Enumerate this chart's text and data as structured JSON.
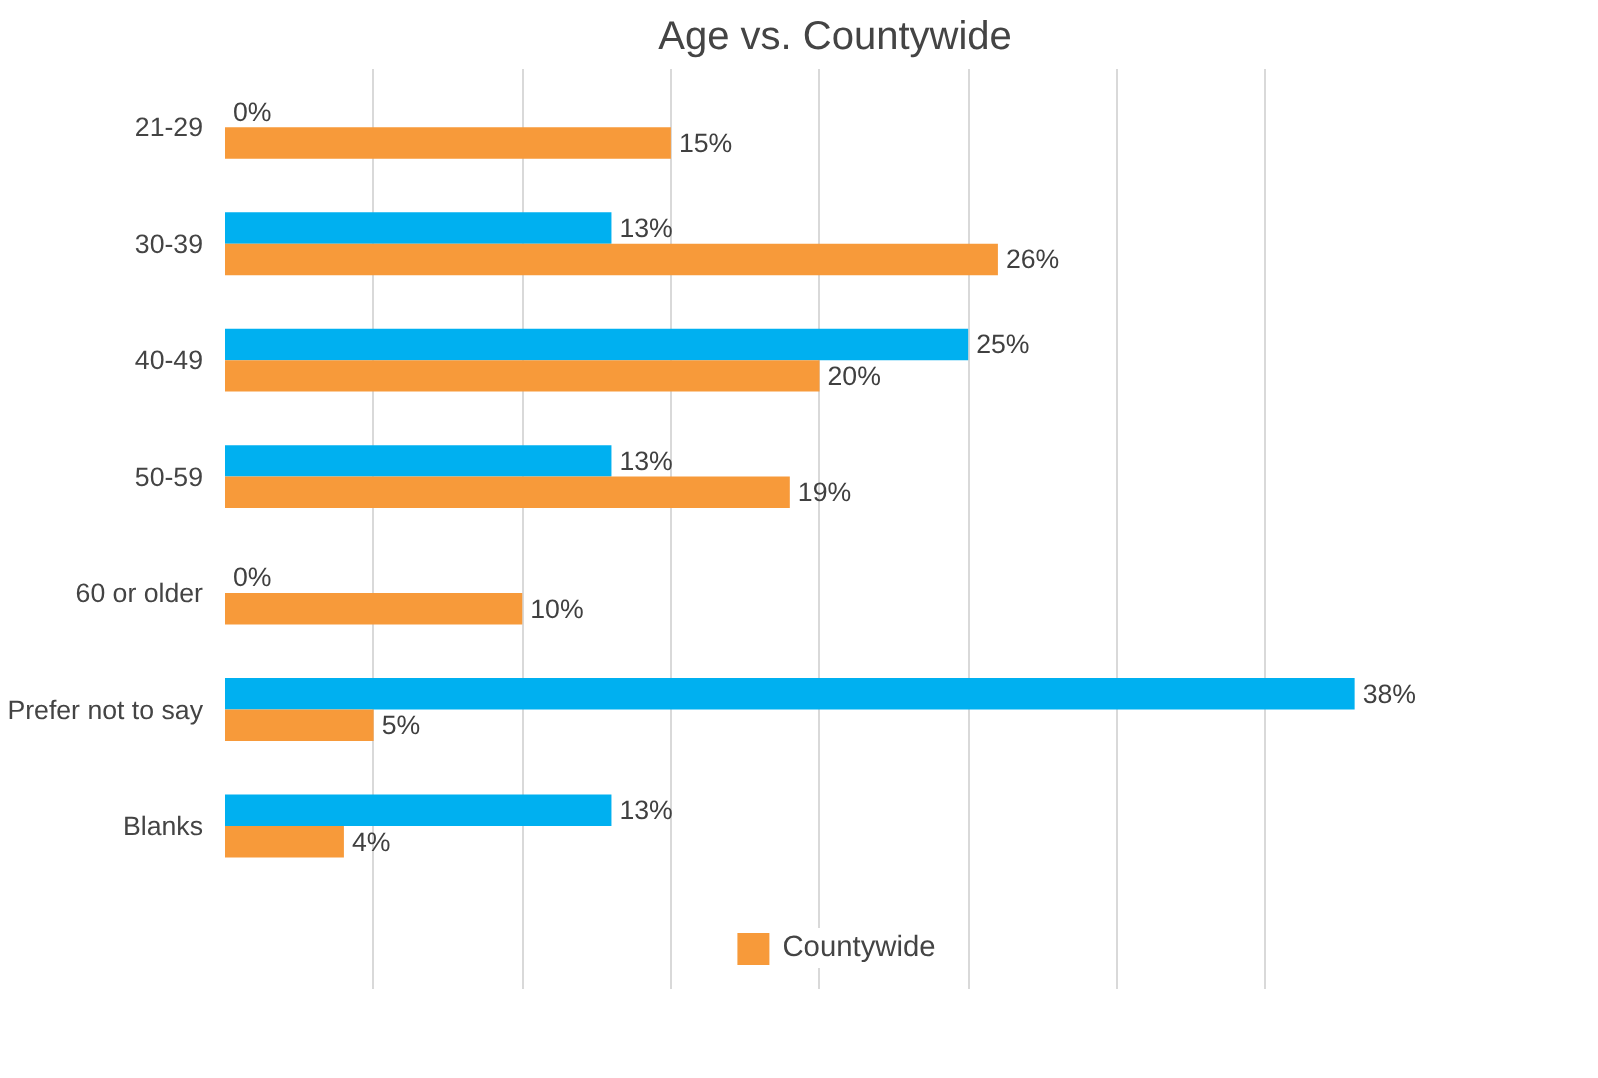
{
  "chart_data": {
    "type": "bar",
    "orientation": "horizontal",
    "title": "Age vs. Countywide",
    "categories": [
      "21-29",
      "30-39",
      "40-49",
      "50-59",
      "60 or older",
      "Prefer not to say",
      "Blanks"
    ],
    "series": [
      {
        "color": "#00b0f0",
        "values": [
          0,
          13,
          25,
          13,
          0,
          38,
          13
        ],
        "value_labels": [
          "0%",
          "13%",
          "25%",
          "13%",
          "0%",
          "38%",
          "13%"
        ]
      },
      {
        "name": "Countywide",
        "color": "#f79a3a",
        "values": [
          15,
          26,
          20,
          19,
          10,
          5,
          4
        ],
        "value_labels": [
          "15%",
          "26%",
          "20%",
          "19%",
          "10%",
          "5%",
          "4%"
        ]
      }
    ],
    "xticks": [
      {
        "value": 5,
        "label": null
      },
      {
        "value": 10,
        "label": null
      },
      {
        "value": 15,
        "label": null
      },
      {
        "value": 20,
        "label": null
      },
      {
        "value": 25,
        "label": null
      },
      {
        "value": 30,
        "label": null
      },
      {
        "value": 35,
        "label": null
      }
    ],
    "grid": "x",
    "legend": "bottom",
    "tick_labels": "y"
  }
}
